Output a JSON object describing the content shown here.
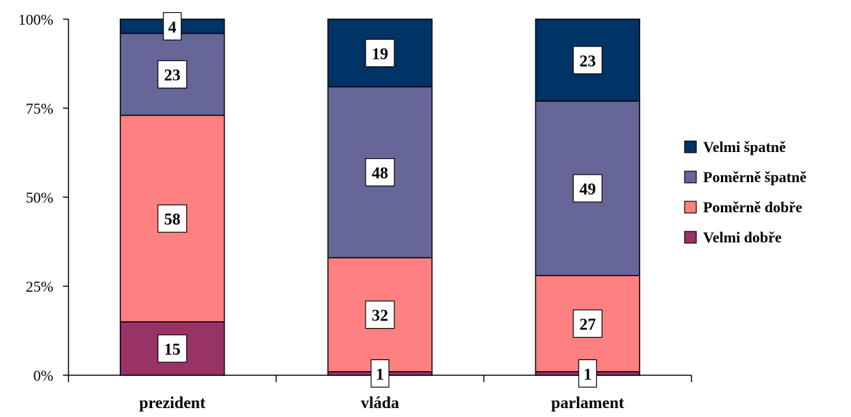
{
  "chart_data": {
    "type": "bar",
    "stacked": true,
    "percent_stacked": true,
    "categories": [
      "prezident",
      "vláda",
      "parlament"
    ],
    "series": [
      {
        "name": "Velmi dobře",
        "values": [
          15,
          1,
          1
        ],
        "color": "#993366"
      },
      {
        "name": "Poměrně dobře",
        "values": [
          58,
          32,
          27
        ],
        "color": "#FF8080"
      },
      {
        "name": "Poměrně špatně",
        "values": [
          23,
          48,
          49
        ],
        "color": "#666699"
      },
      {
        "name": "Velmi špatně",
        "values": [
          4,
          19,
          23
        ],
        "color": "#003366"
      }
    ],
    "y_ticks": [
      "0%",
      "25%",
      "50%",
      "75%",
      "100%"
    ],
    "ylim": [
      0,
      100
    ],
    "grid": false,
    "legend_position": "right"
  }
}
